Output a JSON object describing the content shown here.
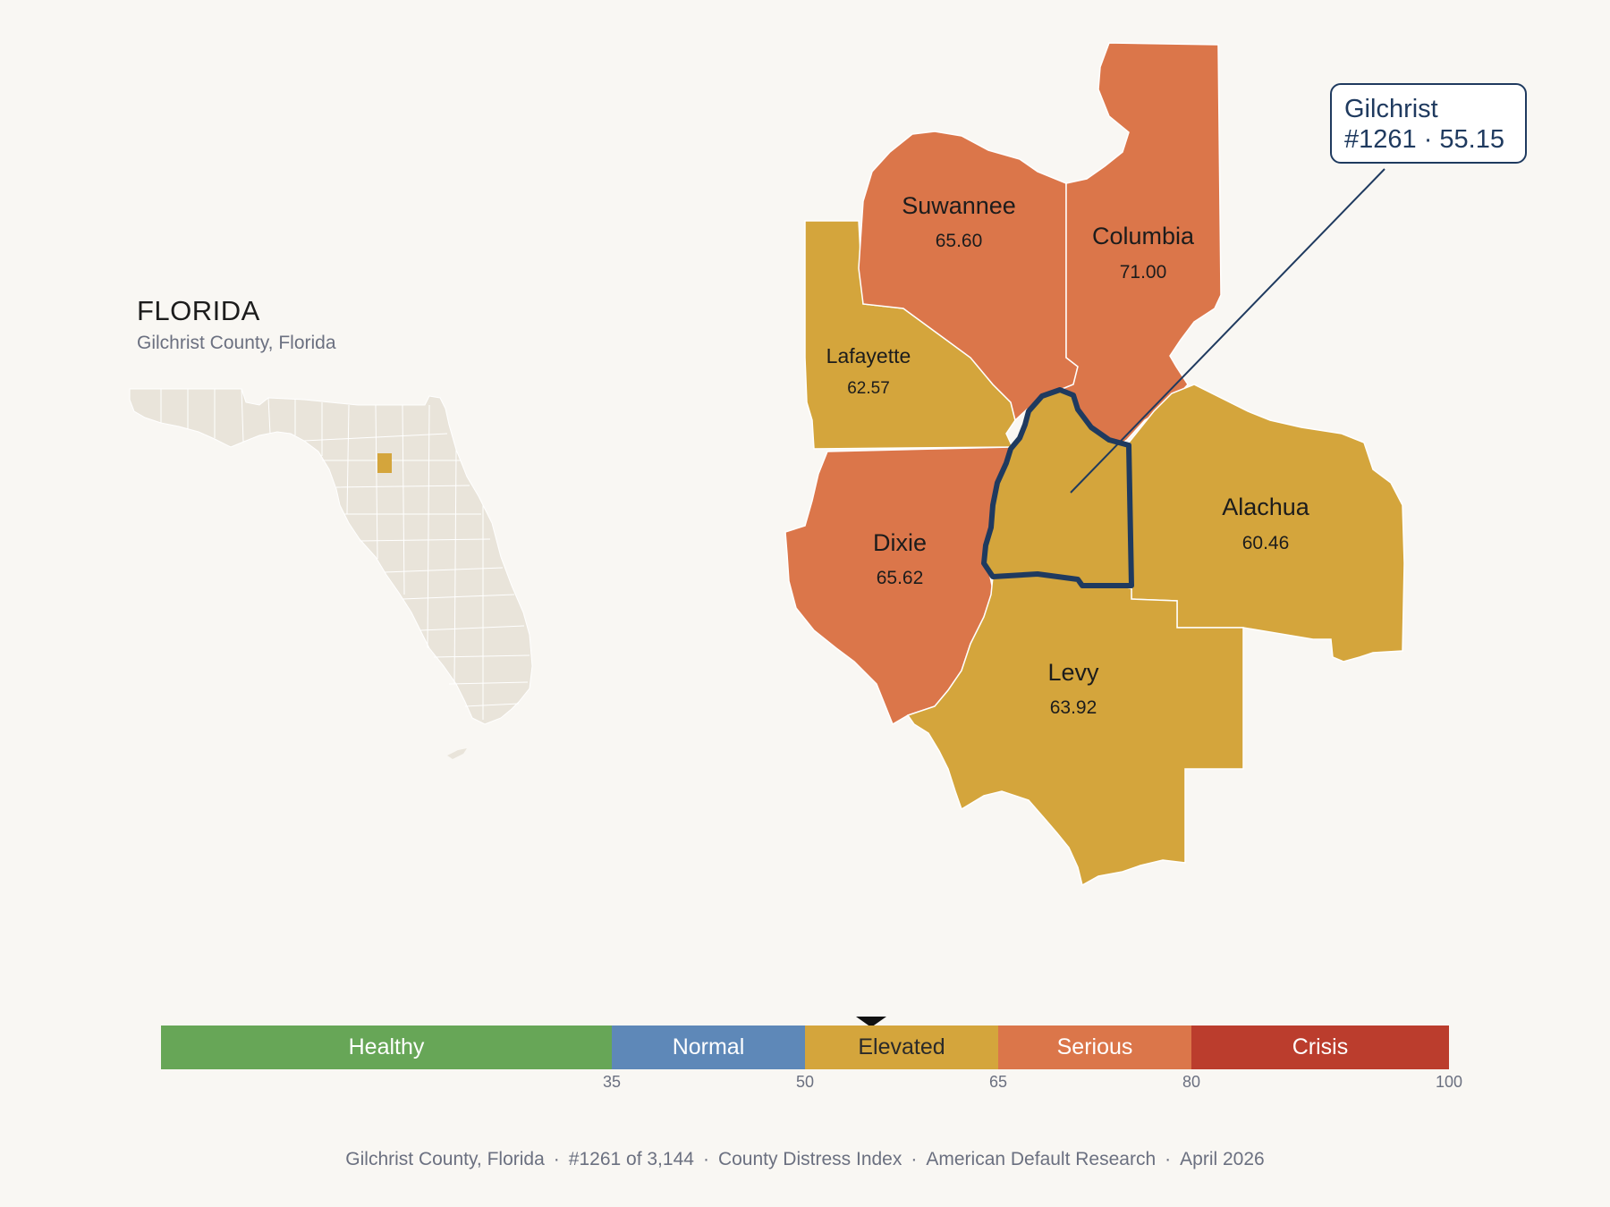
{
  "header": {
    "state": "FLORIDA",
    "subtitle": "Gilchrist County, Florida"
  },
  "callout": {
    "name": "Gilchrist",
    "detail": "#1261 · 55.15"
  },
  "counties": [
    {
      "name": "Suwannee",
      "value": "65.60",
      "category": "Serious"
    },
    {
      "name": "Columbia",
      "value": "71.00",
      "category": "Serious"
    },
    {
      "name": "Lafayette",
      "value": "62.57",
      "category": "Elevated"
    },
    {
      "name": "Dixie",
      "value": "65.62",
      "category": "Serious"
    },
    {
      "name": "Alachua",
      "value": "60.46",
      "category": "Elevated"
    },
    {
      "name": "Levy",
      "value": "63.92",
      "category": "Elevated"
    },
    {
      "name": "Gilchrist",
      "value": "55.15",
      "category": "Elevated",
      "highlighted": true
    }
  ],
  "legend": {
    "segments": [
      {
        "label": "Healthy",
        "from": 0,
        "to": 35,
        "color": "#67a657"
      },
      {
        "label": "Normal",
        "from": 35,
        "to": 50,
        "color": "#5e88b8"
      },
      {
        "label": "Elevated",
        "from": 50,
        "to": 65,
        "color": "#d4a53c"
      },
      {
        "label": "Serious",
        "from": 65,
        "to": 80,
        "color": "#db764a"
      },
      {
        "label": "Crisis",
        "from": 80,
        "to": 100,
        "color": "#bb3d2d"
      }
    ],
    "ticks": [
      "35",
      "50",
      "65",
      "80",
      "100"
    ],
    "marker_value": 55.15
  },
  "colors": {
    "serious": "#db764a",
    "elevated": "#d4a53c",
    "highlight_outline": "#1f3a5f",
    "state_fill": "#e9e4da",
    "background": "#f9f7f3"
  },
  "footer": {
    "county": "Gilchrist County, Florida",
    "rank": "#1261 of 3,144",
    "index": "County Distress Index",
    "source": "American Default Research",
    "date": "April 2026"
  }
}
